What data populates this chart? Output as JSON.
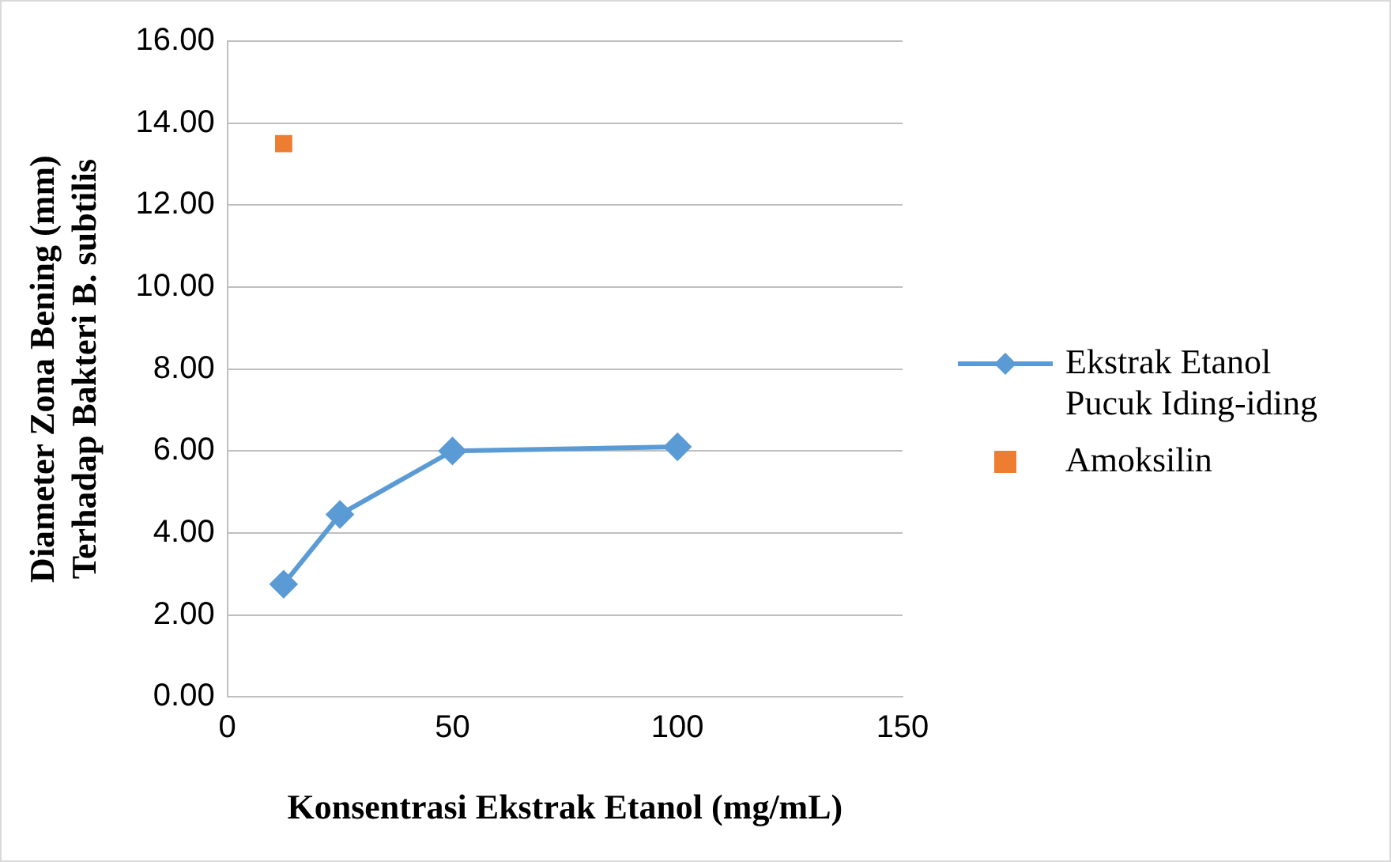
{
  "chart_data": {
    "type": "line",
    "xlabel": "Konsentrasi Ekstrak Etanol (mg/mL)",
    "ylabel": "Diameter Zona Bening (mm)\nTerhadap Bakteri B. subtilis",
    "series": [
      {
        "name": "Ekstrak Etanol\nPucuk Iding-iding",
        "type": "line",
        "color": "#5b9bd5",
        "marker": "diamond",
        "x": [
          12.5,
          25,
          50,
          100
        ],
        "values": [
          2.75,
          4.45,
          6.0,
          6.1
        ]
      },
      {
        "name": "Amoksilin",
        "type": "scatter",
        "color": "#ed7d31",
        "marker": "square",
        "x": [
          12.5
        ],
        "values": [
          13.5
        ]
      }
    ],
    "xlim": [
      0,
      150
    ],
    "xticks": [
      0,
      50,
      100,
      150
    ],
    "ylim": [
      0,
      16
    ],
    "yticks": [
      {
        "value": 0,
        "label": "0.00"
      },
      {
        "value": 2,
        "label": "2.00"
      },
      {
        "value": 4,
        "label": "4.00"
      },
      {
        "value": 6,
        "label": "6.00"
      },
      {
        "value": 8,
        "label": "8.00"
      },
      {
        "value": 10,
        "label": "10.00"
      },
      {
        "value": 12,
        "label": "12.00"
      },
      {
        "value": 14,
        "label": "14.00"
      },
      {
        "value": 16,
        "label": "16.00"
      }
    ],
    "grid": "y",
    "legend": "right",
    "line_style": "solid"
  }
}
